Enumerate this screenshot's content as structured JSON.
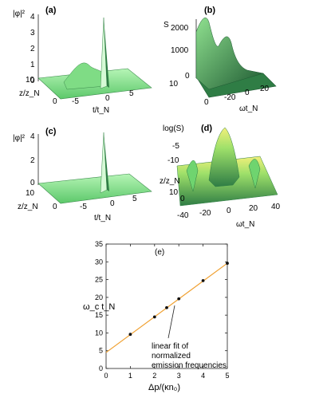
{
  "colors": {
    "surface_light": "#a6f0a6",
    "surface_mid": "#6fd46f",
    "surface_dark": "#2f7d45",
    "surface_deep": "#1e5a32",
    "peak_yellow": "#f2f07a",
    "fit_line": "#f0a030",
    "marker": "#111111"
  },
  "panels": {
    "a": {
      "label": "(a)",
      "zlabel": "|φ|²",
      "zticks": [
        "0",
        "1",
        "2",
        "3",
        "4"
      ],
      "xlabel": "t/t_N",
      "xticks": [
        "-5",
        "0",
        "5"
      ],
      "ylabel": "z/z_N",
      "yticks": [
        "0",
        "10"
      ]
    },
    "b": {
      "label": "(b)",
      "zlabel": "S",
      "zticks": [
        "0",
        "1000",
        "2000"
      ],
      "xlabel": "ωt_N",
      "xticks": [
        "-20",
        "0",
        "20"
      ],
      "ylabel": "",
      "yticks": [
        "0",
        "10"
      ]
    },
    "c": {
      "label": "(c)",
      "zlabel": "|φ|²",
      "zticks": [
        "0",
        "2",
        "4"
      ],
      "xlabel": "t/t_N",
      "xticks": [
        "-5",
        "0",
        "5"
      ],
      "ylabel": "z/z_N",
      "yticks": [
        "0",
        "10"
      ]
    },
    "d": {
      "label": "(d)",
      "zlabel": "log(S)",
      "zticks": [
        "-5",
        "-10"
      ],
      "xlabel": "ωt_N",
      "xticks": [
        "-40",
        "-20",
        "0",
        "20",
        "40"
      ],
      "ylabel": "z/z_N",
      "yticks": [
        "0",
        "10"
      ]
    }
  },
  "chart_data": {
    "type": "scatter",
    "label": "(e)",
    "xlabel": "Δp/(κn₀)",
    "ylabel": "ω_c t_N",
    "xlim": [
      0,
      5
    ],
    "ylim": [
      0,
      35
    ],
    "xticks": [
      "0",
      "1",
      "2",
      "3",
      "4",
      "5"
    ],
    "yticks": [
      "0",
      "5",
      "10",
      "15",
      "20",
      "25",
      "30",
      "35"
    ],
    "grid": false,
    "series": [
      {
        "type": "scatter",
        "x": [
          1,
          2,
          2.5,
          3,
          4,
          5
        ],
        "y": [
          9.6,
          14.5,
          17.1,
          19.6,
          24.7,
          29.6
        ]
      },
      {
        "type": "line",
        "x": [
          0,
          5.1
        ],
        "y": [
          4.5,
          30.1
        ]
      }
    ],
    "annotation": [
      "linear fit of",
      "normalized",
      "emission frequencies"
    ]
  }
}
